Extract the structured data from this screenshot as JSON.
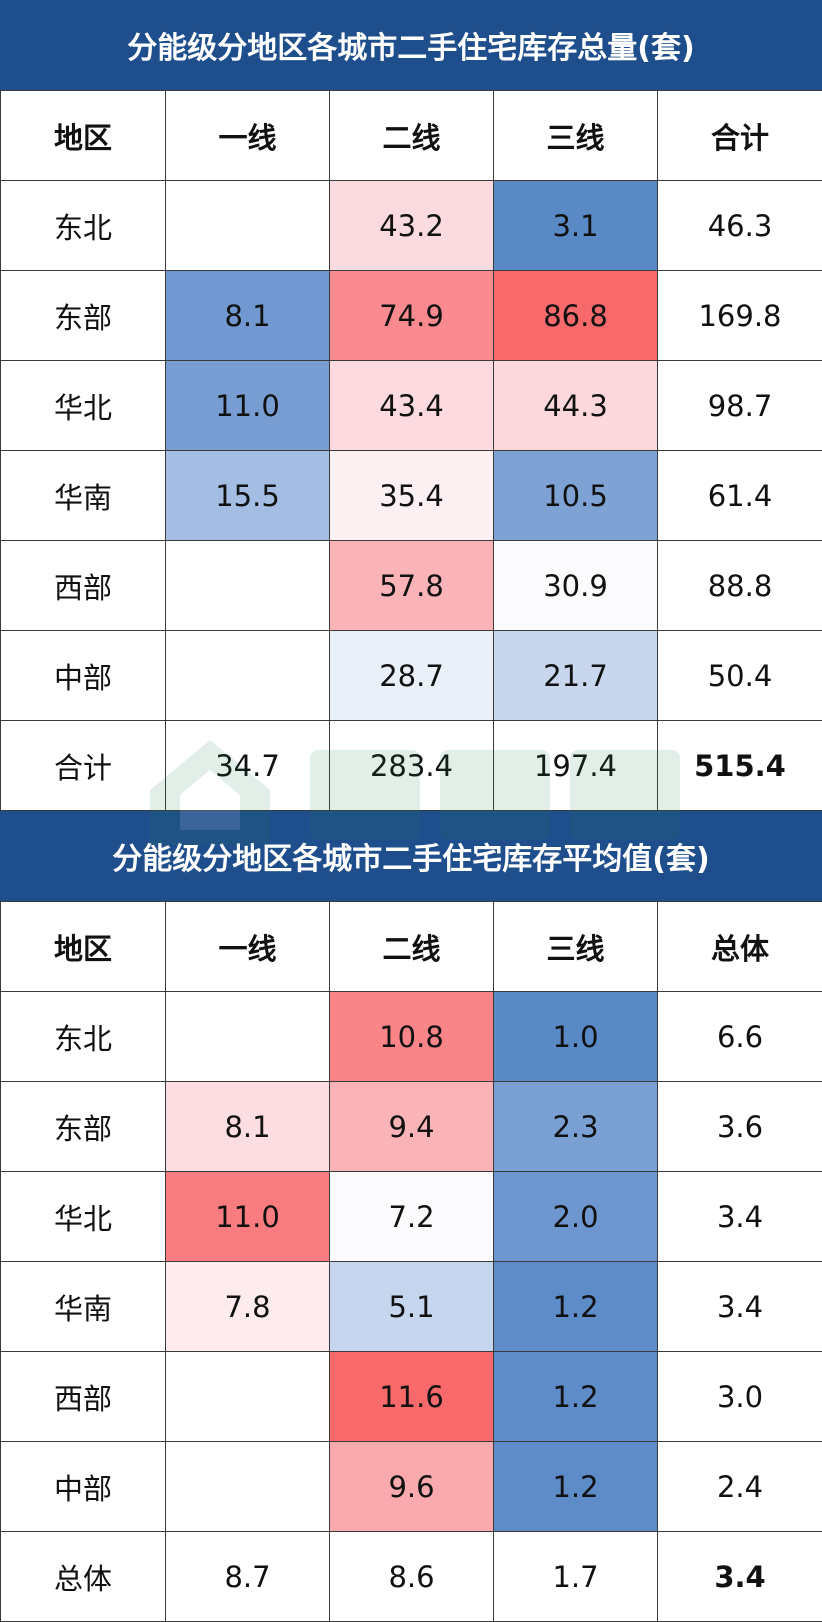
{
  "tables": [
    {
      "title": "分能级分地区各城市二手住宅库存总量(套)",
      "headers": [
        "地区",
        "一线",
        "二线",
        "三线",
        "合计"
      ],
      "rows": [
        {
          "label": "东北",
          "cells": [
            {
              "v": "",
              "bg": "#ffffff"
            },
            {
              "v": "43.2",
              "bg": "#fcdbe0"
            },
            {
              "v": "3.1",
              "bg": "#5a8ac6"
            },
            {
              "v": "46.3",
              "bg": "#ffffff"
            }
          ]
        },
        {
          "label": "东部",
          "cells": [
            {
              "v": "8.1",
              "bg": "#7198d0"
            },
            {
              "v": "74.9",
              "bg": "#f98a8f"
            },
            {
              "v": "86.8",
              "bg": "#f8696b"
            },
            {
              "v": "169.8",
              "bg": "#ffffff"
            }
          ]
        },
        {
          "label": "华北",
          "cells": [
            {
              "v": "11.0",
              "bg": "#779dd2"
            },
            {
              "v": "43.4",
              "bg": "#fcdadf"
            },
            {
              "v": "44.3",
              "bg": "#fcd8dd"
            },
            {
              "v": "98.7",
              "bg": "#ffffff"
            }
          ]
        },
        {
          "label": "华南",
          "cells": [
            {
              "v": "15.5",
              "bg": "#a3bde3"
            },
            {
              "v": "35.4",
              "bg": "#fdf0f2"
            },
            {
              "v": "10.5",
              "bg": "#7ea2d4"
            },
            {
              "v": "61.4",
              "bg": "#ffffff"
            }
          ]
        },
        {
          "label": "西部",
          "cells": [
            {
              "v": "",
              "bg": "#ffffff"
            },
            {
              "v": "57.8",
              "bg": "#fab4b8"
            },
            {
              "v": "30.9",
              "bg": "#fbfbfd"
            },
            {
              "v": "88.8",
              "bg": "#ffffff"
            }
          ]
        },
        {
          "label": "中部",
          "cells": [
            {
              "v": "",
              "bg": "#ffffff"
            },
            {
              "v": "28.7",
              "bg": "#eaf0f8"
            },
            {
              "v": "21.7",
              "bg": "#c8d7ee"
            },
            {
              "v": "50.4",
              "bg": "#ffffff"
            }
          ]
        },
        {
          "label": "合计",
          "cells": [
            {
              "v": "34.7",
              "bg": "#ffffff"
            },
            {
              "v": "283.4",
              "bg": "#ffffff"
            },
            {
              "v": "197.4",
              "bg": "#ffffff"
            },
            {
              "v": "515.4",
              "bg": "#ffffff",
              "bold": true
            }
          ]
        }
      ]
    },
    {
      "title": "分能级分地区各城市二手住宅库存平均值(套)",
      "headers": [
        "地区",
        "一线",
        "二线",
        "三线",
        "总体"
      ],
      "rows": [
        {
          "label": "东北",
          "cells": [
            {
              "v": "",
              "bg": "#ffffff"
            },
            {
              "v": "10.8",
              "bg": "#f98589"
            },
            {
              "v": "1.0",
              "bg": "#5a8ac6"
            },
            {
              "v": "6.6",
              "bg": "#ffffff"
            }
          ]
        },
        {
          "label": "东部",
          "cells": [
            {
              "v": "8.1",
              "bg": "#fcdde2"
            },
            {
              "v": "9.4",
              "bg": "#fab4b8"
            },
            {
              "v": "2.3",
              "bg": "#7aa0d3"
            },
            {
              "v": "3.6",
              "bg": "#ffffff"
            }
          ]
        },
        {
          "label": "华北",
          "cells": [
            {
              "v": "11.0",
              "bg": "#f97d80"
            },
            {
              "v": "7.2",
              "bg": "#fbfbfd"
            },
            {
              "v": "2.0",
              "bg": "#6e96cf"
            },
            {
              "v": "3.4",
              "bg": "#ffffff"
            }
          ]
        },
        {
          "label": "华南",
          "cells": [
            {
              "v": "7.8",
              "bg": "#fdebee"
            },
            {
              "v": "5.1",
              "bg": "#c6d6ee"
            },
            {
              "v": "1.2",
              "bg": "#5d8cc8"
            },
            {
              "v": "3.4",
              "bg": "#ffffff"
            }
          ]
        },
        {
          "label": "西部",
          "cells": [
            {
              "v": "",
              "bg": "#ffffff"
            },
            {
              "v": "11.6",
              "bg": "#f8696b"
            },
            {
              "v": "1.2",
              "bg": "#5d8cc8"
            },
            {
              "v": "3.0",
              "bg": "#ffffff"
            }
          ]
        },
        {
          "label": "中部",
          "cells": [
            {
              "v": "",
              "bg": "#ffffff"
            },
            {
              "v": "9.6",
              "bg": "#faaaae"
            },
            {
              "v": "1.2",
              "bg": "#5d8cc8"
            },
            {
              "v": "2.4",
              "bg": "#ffffff"
            }
          ]
        },
        {
          "label": "总体",
          "cells": [
            {
              "v": "8.7",
              "bg": "#ffffff"
            },
            {
              "v": "8.6",
              "bg": "#ffffff"
            },
            {
              "v": "1.7",
              "bg": "#ffffff"
            },
            {
              "v": "3.4",
              "bg": "#ffffff",
              "bold": true
            }
          ]
        }
      ]
    }
  ],
  "chart_data": [
    {
      "type": "table",
      "title": "分能级分地区各城市二手住宅库存总量(套)",
      "columns": [
        "地区",
        "一线",
        "二线",
        "三线",
        "合计"
      ],
      "rows": [
        [
          "东北",
          null,
          43.2,
          3.1,
          46.3
        ],
        [
          "东部",
          8.1,
          74.9,
          86.8,
          169.8
        ],
        [
          "华北",
          11.0,
          43.4,
          44.3,
          98.7
        ],
        [
          "华南",
          15.5,
          35.4,
          10.5,
          61.4
        ],
        [
          "西部",
          null,
          57.8,
          30.9,
          88.8
        ],
        [
          "中部",
          null,
          28.7,
          21.7,
          50.4
        ],
        [
          "合计",
          34.7,
          283.4,
          197.4,
          515.4
        ]
      ]
    },
    {
      "type": "table",
      "title": "分能级分地区各城市二手住宅库存平均值(套)",
      "columns": [
        "地区",
        "一线",
        "二线",
        "三线",
        "总体"
      ],
      "rows": [
        [
          "东北",
          null,
          10.8,
          1.0,
          6.6
        ],
        [
          "东部",
          8.1,
          9.4,
          2.3,
          3.6
        ],
        [
          "华北",
          11.0,
          7.2,
          2.0,
          3.4
        ],
        [
          "华南",
          7.8,
          5.1,
          1.2,
          3.4
        ],
        [
          "西部",
          null,
          11.6,
          1.2,
          3.0
        ],
        [
          "中部",
          null,
          9.6,
          1.2,
          2.4
        ],
        [
          "总体",
          8.7,
          8.6,
          1.7,
          3.4
        ]
      ]
    }
  ]
}
